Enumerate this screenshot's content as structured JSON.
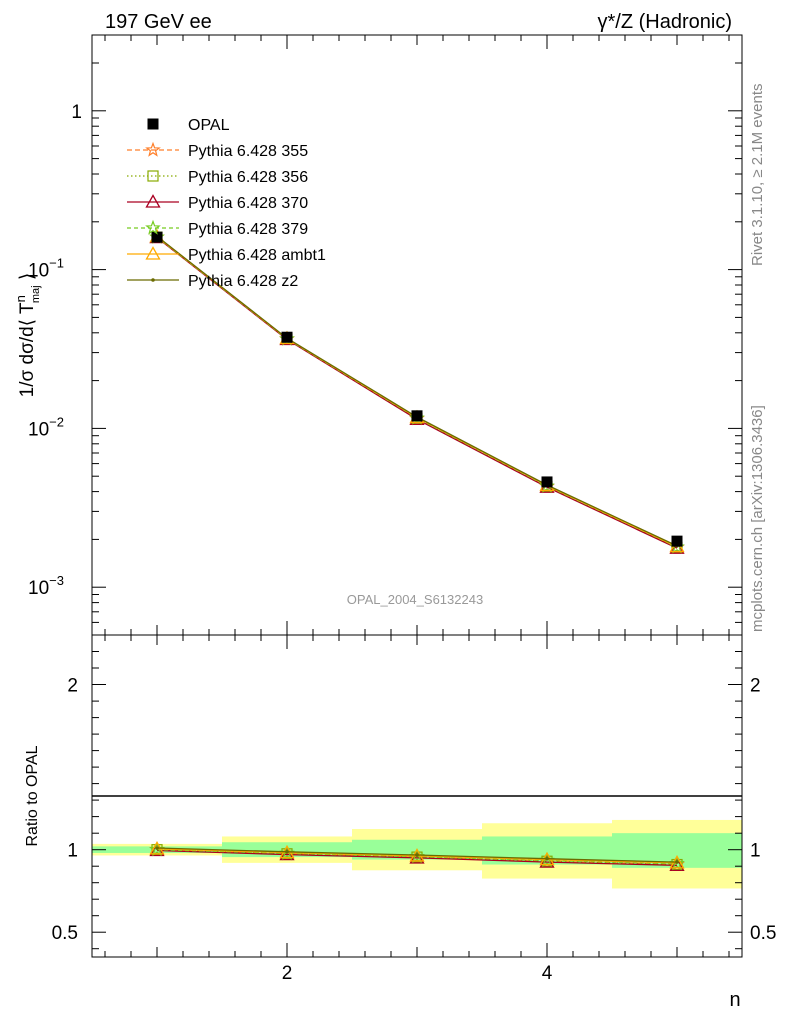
{
  "header": {
    "left_title": "197 GeV ee",
    "right_title": "γ*/Z (Hadronic)"
  },
  "side_labels": {
    "rivet": "Rivet 3.1.10, ≥ 2.1M events",
    "mcplots": "mcplots.cern.ch [arXiv:1306.3436]"
  },
  "analysis_label": "OPAL_2004_S6132243",
  "colors": {
    "opal": "#000000",
    "p355": "#ff7f2a",
    "p356": "#88aa00",
    "p370": "#aa0022",
    "p379": "#77cc22",
    "ambt1": "#ffaa00",
    "z2": "#6b6b00",
    "band_stat": "#99ff99",
    "band_total": "#ffff99"
  },
  "chart_data": [
    {
      "type": "line",
      "panel": "main",
      "ylabel": "1/σ dσ/d⟨ T^n_maj ⟩",
      "yscale": "log",
      "ylim": [
        0.0005,
        3
      ],
      "xlim": [
        0.5,
        5.5
      ],
      "y_ticks": [
        {
          "value": 1,
          "label": "1"
        },
        {
          "value": 0.1,
          "label": "10",
          "exp": "−1"
        },
        {
          "value": 0.01,
          "label": "10",
          "exp": "−2"
        },
        {
          "value": 0.001,
          "label": "10",
          "exp": "−3"
        }
      ],
      "x": [
        1,
        2,
        3,
        4,
        5
      ],
      "legend_position": "top-left",
      "series": [
        {
          "name": "OPAL",
          "marker": "square",
          "values": [
            0.16,
            0.0375,
            0.012,
            0.0046,
            0.00195
          ]
        },
        {
          "name": "Pythia 6.428 355",
          "marker": "star",
          "dash": "dashed",
          "values": [
            0.16,
            0.0365,
            0.0115,
            0.0043,
            0.00178
          ]
        },
        {
          "name": "Pythia 6.428 356",
          "marker": "open-square",
          "dash": "dotted",
          "values": [
            0.16,
            0.0365,
            0.0115,
            0.0043,
            0.00178
          ]
        },
        {
          "name": "Pythia 6.428 370",
          "marker": "open-triangle",
          "dash": "solid",
          "values": [
            0.159,
            0.0363,
            0.0114,
            0.00426,
            0.00176
          ]
        },
        {
          "name": "Pythia 6.428 379",
          "marker": "star",
          "dash": "dashed",
          "values": [
            0.16,
            0.0366,
            0.0116,
            0.00433,
            0.00179
          ]
        },
        {
          "name": "Pythia 6.428 ambt1",
          "marker": "open-triangle",
          "dash": "solid",
          "values": [
            0.161,
            0.0368,
            0.0117,
            0.00437,
            0.0018
          ]
        },
        {
          "name": "Pythia 6.428 z2",
          "marker": "dot",
          "dash": "solid",
          "values": [
            0.162,
            0.037,
            0.0118,
            0.0044,
            0.00182
          ]
        }
      ]
    },
    {
      "type": "line",
      "panel": "ratio",
      "ylabel": "Ratio to OPAL",
      "xlabel": "n",
      "ylim": [
        0.35,
        2.3
      ],
      "xlim": [
        0.5,
        5.5
      ],
      "y_ticks": [
        {
          "value": 2,
          "label": "2"
        },
        {
          "value": 1,
          "label": "1"
        },
        {
          "value": 0.5,
          "label": "0.5"
        }
      ],
      "x_ticks": [
        2,
        4
      ],
      "x": [
        1,
        2,
        3,
        4,
        5
      ],
      "bands": [
        {
          "name": "stat",
          "x_bins": [
            [
              0.5,
              1.5
            ],
            [
              1.5,
              2.5
            ],
            [
              2.5,
              3.5
            ],
            [
              3.5,
              4.5
            ],
            [
              4.5,
              5.5
            ]
          ],
          "low": [
            0.98,
            0.955,
            0.94,
            0.91,
            0.89
          ],
          "high": [
            1.02,
            1.045,
            1.06,
            1.08,
            1.1
          ]
        },
        {
          "name": "total",
          "x_bins": [
            [
              0.5,
              1.5
            ],
            [
              1.5,
              2.5
            ],
            [
              2.5,
              3.5
            ],
            [
              3.5,
              4.5
            ],
            [
              4.5,
              5.5
            ]
          ],
          "low": [
            0.965,
            0.92,
            0.875,
            0.825,
            0.765
          ],
          "high": [
            1.035,
            1.08,
            1.125,
            1.16,
            1.18
          ]
        }
      ],
      "series": [
        {
          "name": "Pythia 6.428 355",
          "values": [
            1.0,
            0.975,
            0.955,
            0.93,
            0.91
          ]
        },
        {
          "name": "Pythia 6.428 356",
          "values": [
            1.0,
            0.975,
            0.955,
            0.93,
            0.91
          ]
        },
        {
          "name": "Pythia 6.428 370",
          "values": [
            0.995,
            0.97,
            0.95,
            0.925,
            0.905
          ]
        },
        {
          "name": "Pythia 6.428 379",
          "values": [
            1.0,
            0.978,
            0.958,
            0.935,
            0.915
          ]
        },
        {
          "name": "Pythia 6.428 ambt1",
          "values": [
            1.005,
            0.982,
            0.962,
            0.94,
            0.92
          ]
        },
        {
          "name": "Pythia 6.428 z2",
          "values": [
            1.01,
            0.987,
            0.968,
            0.945,
            0.925
          ]
        }
      ]
    }
  ]
}
